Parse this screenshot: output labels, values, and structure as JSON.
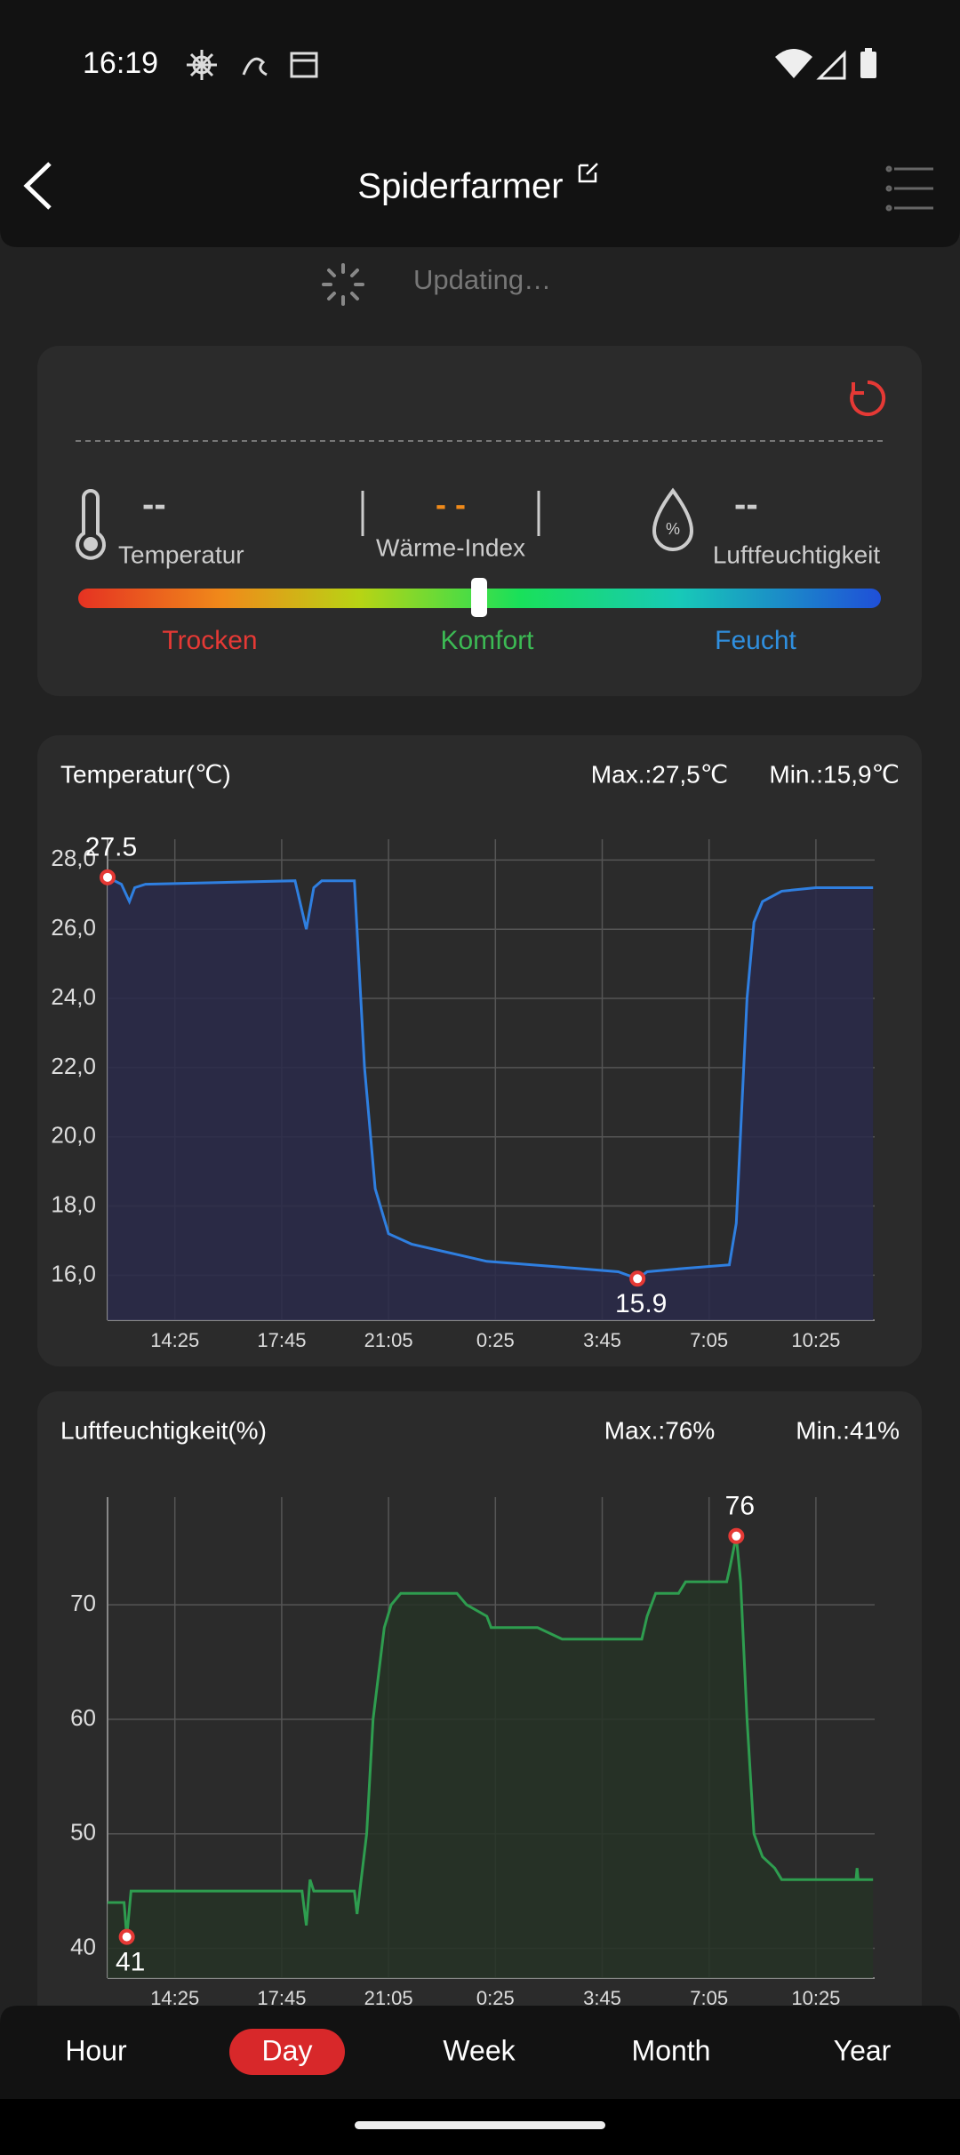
{
  "status_bar": {
    "time": "16:19"
  },
  "header": {
    "title": "Spiderfarmer"
  },
  "status": "Updating…",
  "summary": {
    "temperature": {
      "value": "--",
      "label": "Temperatur"
    },
    "heat_index": {
      "value": "- -",
      "label": "Wärme-Index"
    },
    "humidity": {
      "value": "--",
      "label": "Luftfeuchtigkeit"
    },
    "scale_labels": [
      "Trocken",
      "Komfort",
      "Feucht"
    ]
  },
  "chart_data": [
    {
      "type": "line",
      "title": "Temperatur(℃)",
      "max_label": "Max.:27,5℃",
      "min_label": "Min.:15,9℃",
      "color": "#2f7fe0",
      "fill_color": "#2a2a4a",
      "grid": true,
      "x": [
        "12:19",
        "12:45",
        "13:00",
        "13:10",
        "13:30",
        "18:10",
        "18:31",
        "18:45",
        "19:00",
        "20:01",
        "20:20",
        "20:40",
        "21:05",
        "21:48",
        "23:13",
        "0:09",
        "2:56",
        "4:15",
        "4:51",
        "5:09",
        "6:21",
        "7:43",
        "7:56",
        "8:16",
        "8:29",
        "8:45",
        "9:21",
        "10:25",
        "12:12"
      ],
      "values": [
        27.5,
        27.3,
        26.8,
        27.2,
        27.3,
        27.4,
        26.0,
        27.2,
        27.4,
        27.4,
        22.0,
        18.5,
        17.2,
        16.9,
        16.6,
        16.4,
        16.2,
        16.1,
        15.9,
        16.1,
        16.2,
        16.3,
        17.5,
        24.0,
        26.2,
        26.8,
        27.1,
        27.2,
        27.2
      ],
      "xlim": [
        "12:19",
        "12:15"
      ],
      "xticks": [
        "14:25",
        "17:45",
        "21:05",
        "0:25",
        "3:45",
        "7:05",
        "10:25"
      ],
      "ylim": [
        14.7,
        28.6
      ],
      "yticks": [
        {
          "value": 16,
          "label": "16,0"
        },
        {
          "value": 18,
          "label": "18,0"
        },
        {
          "value": 20,
          "label": "20,0"
        },
        {
          "value": 22,
          "label": "22,0"
        },
        {
          "value": 24,
          "label": "24,0"
        },
        {
          "value": 26,
          "label": "26,0"
        },
        {
          "value": 28,
          "label": "28,0"
        }
      ]
    },
    {
      "type": "line",
      "title": "Luftfeuchtigkeit(%)",
      "max_label": "Max.:76%",
      "min_label": "Min.:41%",
      "color": "#2e9d4f",
      "fill_color": "#263326",
      "grid": true,
      "x": [
        "12:19",
        "12:50",
        "12:55",
        "13:03",
        "18:23",
        "18:31",
        "18:38",
        "18:45",
        "20:01",
        "20:06",
        "20:24",
        "20:36",
        "20:57",
        "21:10",
        "21:28",
        "23:13",
        "23:31",
        "0:09",
        "0:17",
        "1:44",
        "2:30",
        "4:59",
        "5:09",
        "5:25",
        "6:08",
        "6:21",
        "7:38",
        "7:43",
        "7:56",
        "8:04",
        "8:16",
        "8:29",
        "8:45",
        "9:08",
        "9:21",
        "11:40",
        "11:42",
        "11:44",
        "12:12"
      ],
      "values": [
        44,
        44,
        41,
        45,
        45,
        42,
        46,
        45,
        45,
        43,
        50,
        60,
        68,
        70,
        71,
        71,
        70,
        69,
        68,
        68,
        67,
        67,
        69,
        71,
        71,
        72,
        72,
        73,
        76,
        72,
        60,
        50,
        48,
        47,
        46,
        46,
        47,
        46,
        46
      ],
      "xlim": [
        "12:19",
        "12:15"
      ],
      "xticks": [
        "14:25",
        "17:45",
        "21:05",
        "0:25",
        "3:45",
        "7:05",
        "10:25"
      ],
      "ylim": [
        37.4,
        79.4
      ],
      "yticks": [
        40,
        50,
        60,
        70
      ]
    }
  ],
  "bottom_nav": {
    "tabs": [
      "Hour",
      "Day",
      "Week",
      "Month",
      "Year"
    ],
    "selected": 1
  }
}
